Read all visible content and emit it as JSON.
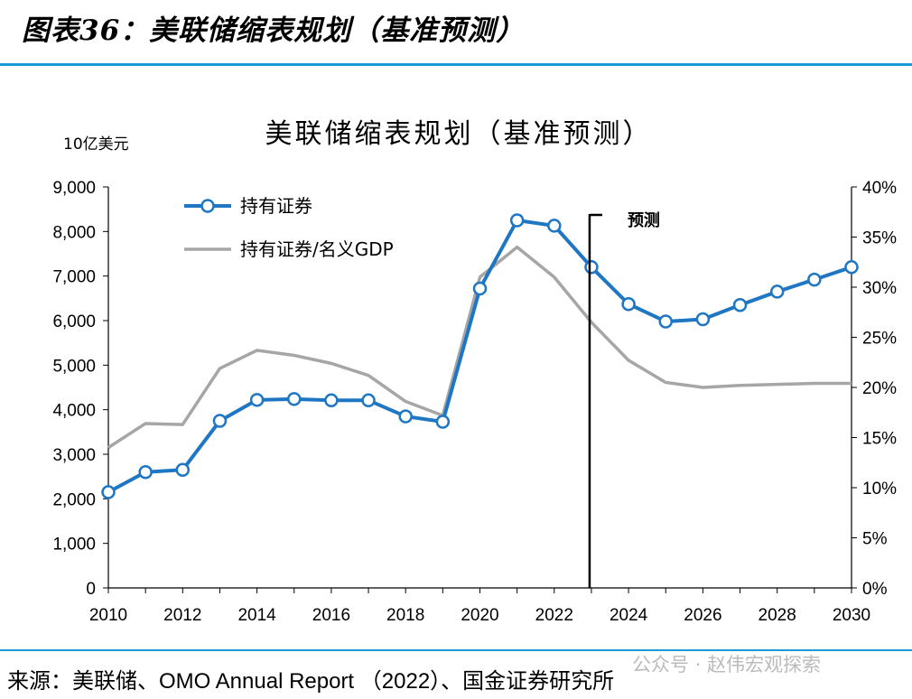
{
  "figure_title": "图表36：美联储缩表规划（基准预测）",
  "source": "来源：美联储、OMO Annual Report （2022）、国金证券研究所",
  "watermark": "公众号 · 赵伟宏观探索",
  "colors": {
    "accent_rule": "#1a9ad6",
    "series_primary": "#1f77c4",
    "series_secondary": "#a6a6a6"
  },
  "chart_data": {
    "type": "line",
    "title": "美联储缩表规划（基准预测）",
    "ylabel": "10亿美元",
    "xlabel": "",
    "ylim": [
      0,
      9000
    ],
    "y2lim": [
      0,
      40
    ],
    "xlim": [
      2010,
      2030
    ],
    "yticks": [
      "0",
      "1,000",
      "2,000",
      "3,000",
      "4,000",
      "5,000",
      "6,000",
      "7,000",
      "8,000",
      "9,000"
    ],
    "y2ticks": [
      "0%",
      "5%",
      "10%",
      "15%",
      "20%",
      "25%",
      "30%",
      "35%",
      "40%"
    ],
    "xticks": [
      "2010",
      "2012",
      "2014",
      "2016",
      "2018",
      "2020",
      "2022",
      "2024",
      "2026",
      "2028",
      "2030"
    ],
    "forecast_year": 2023,
    "forecast_label": "预测",
    "grid": false,
    "legend_position": "top-left",
    "series": [
      {
        "name": "持有证券",
        "axis": "left",
        "marker": "circle",
        "color": "#1f77c4",
        "x": [
          2010,
          2011,
          2012,
          2013,
          2014,
          2015,
          2016,
          2017,
          2018,
          2019,
          2020,
          2021,
          2022,
          2023,
          2024,
          2025,
          2026,
          2027,
          2028,
          2029,
          2030
        ],
        "values": [
          2150,
          2600,
          2650,
          3750,
          4220,
          4240,
          4210,
          4210,
          3850,
          3730,
          6720,
          8250,
          8130,
          7200,
          6370,
          5980,
          6030,
          6350,
          6650,
          6920,
          7200
        ]
      },
      {
        "name": "持有证券/名义GDP",
        "axis": "right",
        "marker": "none",
        "color": "#a6a6a6",
        "x": [
          2010,
          2011,
          2012,
          2013,
          2014,
          2015,
          2016,
          2017,
          2018,
          2019,
          2020,
          2021,
          2022,
          2023,
          2024,
          2025,
          2026,
          2027,
          2028,
          2029,
          2030
        ],
        "values": [
          14.0,
          16.4,
          16.3,
          21.9,
          23.7,
          23.2,
          22.4,
          21.2,
          18.6,
          17.2,
          31.0,
          34.0,
          31.0,
          26.5,
          22.7,
          20.5,
          20.0,
          20.2,
          20.3,
          20.4,
          20.4
        ]
      }
    ]
  }
}
